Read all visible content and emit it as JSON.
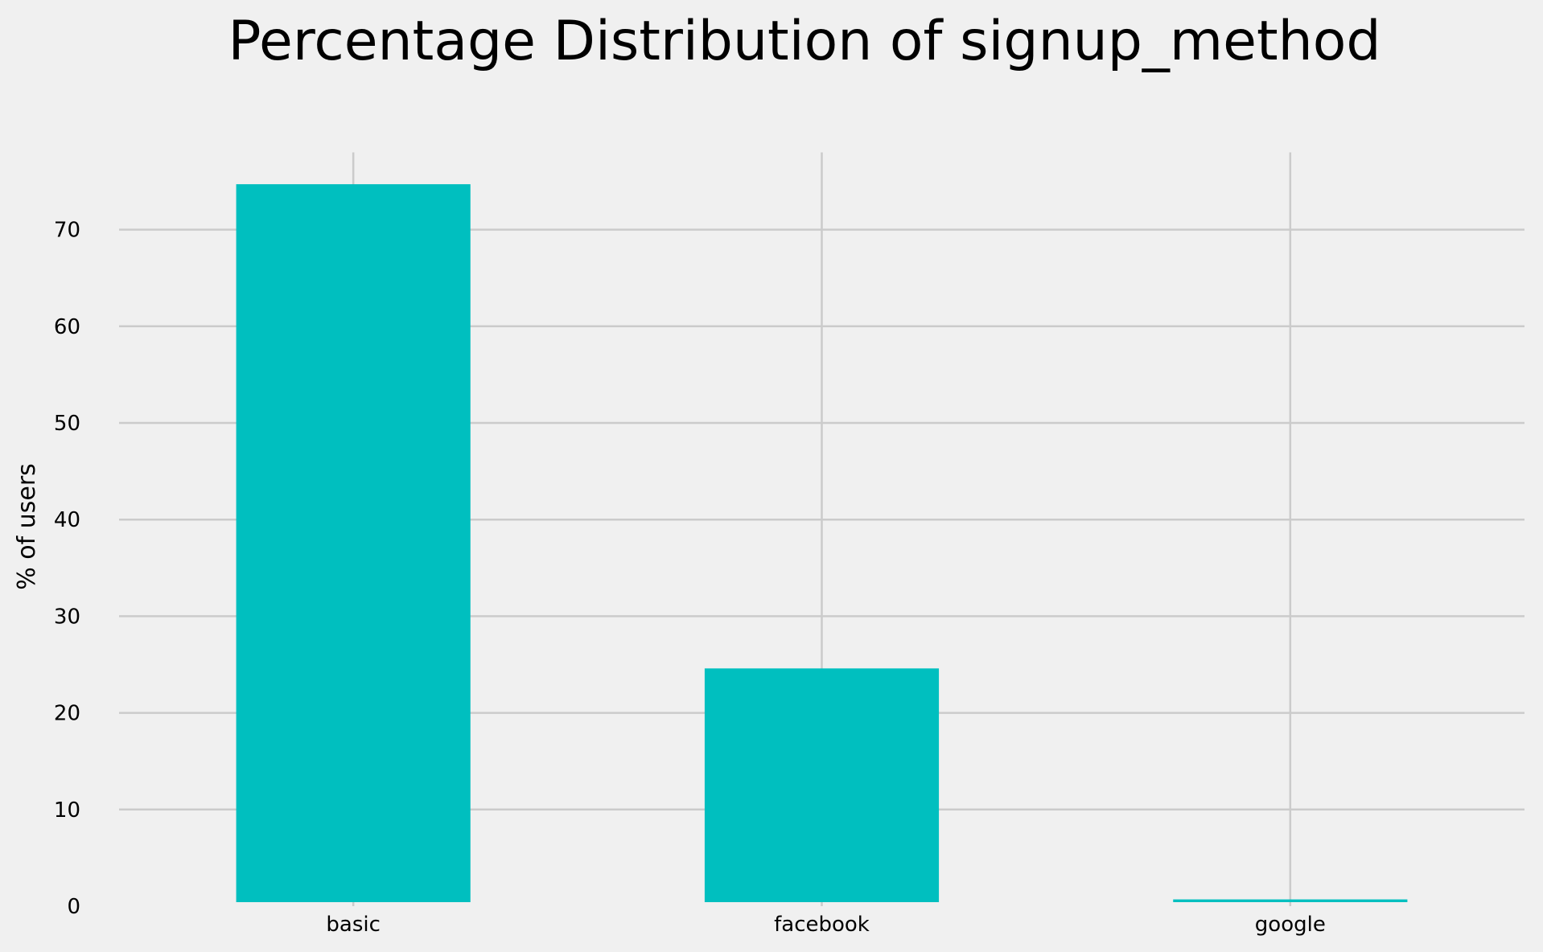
{
  "chart_data": {
    "type": "bar",
    "title": "Percentage Distribution of signup_method",
    "xlabel": "",
    "ylabel": "% of users",
    "categories": [
      "basic",
      "facebook",
      "google"
    ],
    "values": [
      74.7,
      24.6,
      0.7
    ],
    "ylim": [
      0,
      78
    ],
    "yticks": [
      0,
      10,
      20,
      30,
      40,
      50,
      60,
      70
    ],
    "grid": true,
    "legend": false,
    "bar_color": "#00bfbf",
    "background_color": "#f0f0f0",
    "grid_color": "#cbcbcb"
  }
}
